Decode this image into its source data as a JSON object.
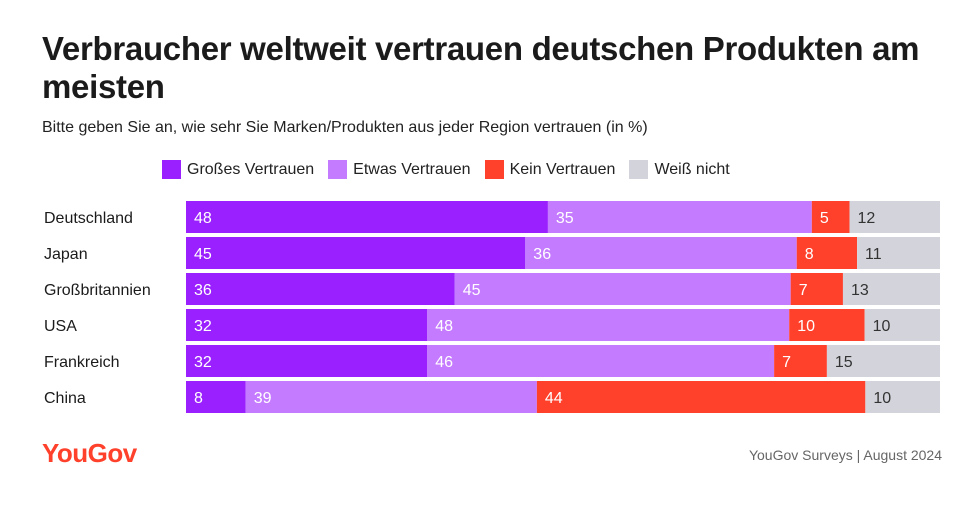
{
  "title": "Verbraucher weltweit vertrauen deutschen Produkten am meisten",
  "subtitle": "Bitte geben Sie an, wie sehr Sie Marken/Produkten aus jeder Region vertrauen (in %)",
  "logo": "YouGov",
  "source": "YouGov Surveys | August 2024",
  "colors": {
    "gross": "#9a20ff",
    "etwas": "#c57bff",
    "kein": "#ff412c",
    "weiss": "#d3d4db"
  },
  "chart_data": {
    "type": "bar",
    "orientation": "horizontal",
    "stacked": true,
    "title": "Verbraucher weltweit vertrauen deutschen Produkten am meisten",
    "unit": "%",
    "categories": [
      "Deutschland",
      "Japan",
      "Großbritannien",
      "USA",
      "Frankreich",
      "China"
    ],
    "series": [
      {
        "name": "Großes Vertrauen",
        "values": [
          48,
          45,
          36,
          32,
          32,
          8
        ]
      },
      {
        "name": "Etwas Vertrauen",
        "values": [
          35,
          36,
          45,
          48,
          46,
          39
        ]
      },
      {
        "name": "Kein Vertrauen",
        "values": [
          5,
          8,
          7,
          10,
          7,
          44
        ]
      },
      {
        "name": "Weiß nicht",
        "values": [
          12,
          11,
          13,
          10,
          15,
          10
        ]
      }
    ],
    "legend_position": "top"
  }
}
